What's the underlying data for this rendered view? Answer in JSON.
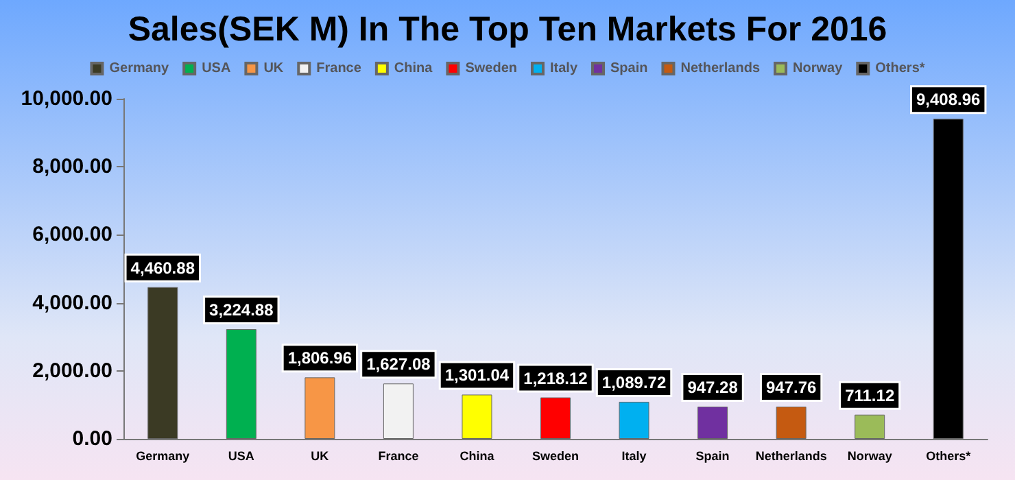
{
  "chart_data": {
    "type": "bar",
    "title": "Sales(SEK M) In The Top Ten Markets For 2016",
    "categories": [
      "Germany",
      "USA",
      "UK",
      "France",
      "China",
      "Sweden",
      "Italy",
      "Spain",
      "Netherlands",
      "Norway",
      "Others*"
    ],
    "series": [
      {
        "name": "Germany",
        "color": "#3b3a24",
        "values": [
          4460.88,
          null,
          null,
          null,
          null,
          null,
          null,
          null,
          null,
          null,
          null
        ],
        "value_labels": [
          "4,460.88",
          null,
          null,
          null,
          null,
          null,
          null,
          null,
          null,
          null,
          null
        ]
      },
      {
        "name": "USA",
        "color": "#00b050",
        "values": [
          null,
          3224.88,
          null,
          null,
          null,
          null,
          null,
          null,
          null,
          null,
          null
        ],
        "value_labels": [
          null,
          "3,224.88",
          null,
          null,
          null,
          null,
          null,
          null,
          null,
          null,
          null
        ]
      },
      {
        "name": "UK",
        "color": "#f79646",
        "values": [
          null,
          null,
          1806.96,
          null,
          null,
          null,
          null,
          null,
          null,
          null,
          null
        ],
        "value_labels": [
          null,
          null,
          "1,806.96",
          null,
          null,
          null,
          null,
          null,
          null,
          null,
          null
        ]
      },
      {
        "name": "France",
        "color": "#f2f2f2",
        "values": [
          null,
          null,
          null,
          1627.08,
          null,
          null,
          null,
          null,
          null,
          null,
          null
        ],
        "value_labels": [
          null,
          null,
          null,
          "1,627.08",
          null,
          null,
          null,
          null,
          null,
          null,
          null
        ]
      },
      {
        "name": "China",
        "color": "#ffff00",
        "values": [
          null,
          null,
          null,
          null,
          1301.04,
          null,
          null,
          null,
          null,
          null,
          null
        ],
        "value_labels": [
          null,
          null,
          null,
          null,
          "1,301.04",
          null,
          null,
          null,
          null,
          null,
          null
        ]
      },
      {
        "name": "Sweden",
        "color": "#ff0000",
        "values": [
          null,
          null,
          null,
          null,
          null,
          1218.12,
          null,
          null,
          null,
          null,
          null
        ],
        "value_labels": [
          null,
          null,
          null,
          null,
          null,
          "1,218.12",
          null,
          null,
          null,
          null,
          null
        ]
      },
      {
        "name": "Italy",
        "color": "#00b0f0",
        "values": [
          null,
          null,
          null,
          null,
          null,
          null,
          1089.72,
          null,
          null,
          null,
          null
        ],
        "value_labels": [
          null,
          null,
          null,
          null,
          null,
          null,
          "1,089.72",
          null,
          null,
          null,
          null
        ]
      },
      {
        "name": "Spain",
        "color": "#7030a0",
        "values": [
          null,
          null,
          null,
          null,
          null,
          null,
          null,
          947.28,
          null,
          null,
          null
        ],
        "value_labels": [
          null,
          null,
          null,
          null,
          null,
          null,
          null,
          "947.28",
          null,
          null,
          null
        ]
      },
      {
        "name": "Netherlands",
        "color": "#c55a11",
        "values": [
          null,
          null,
          null,
          null,
          null,
          null,
          null,
          null,
          947.76,
          null,
          null
        ],
        "value_labels": [
          null,
          null,
          null,
          null,
          null,
          null,
          null,
          null,
          "947.76",
          null,
          null
        ]
      },
      {
        "name": "Norway",
        "color": "#9bbb59",
        "values": [
          null,
          null,
          null,
          null,
          null,
          null,
          null,
          null,
          null,
          711.12,
          null
        ],
        "value_labels": [
          null,
          null,
          null,
          null,
          null,
          null,
          null,
          null,
          null,
          "711.12",
          null
        ]
      },
      {
        "name": "Others*",
        "color": "#000000",
        "values": [
          null,
          null,
          null,
          null,
          null,
          null,
          null,
          null,
          null,
          null,
          9408.96
        ],
        "value_labels": [
          null,
          null,
          null,
          null,
          null,
          null,
          null,
          null,
          null,
          null,
          "9,408.96"
        ]
      }
    ],
    "ylim": [
      0,
      10000
    ],
    "yticks": [
      {
        "value": 0,
        "label": "0.00"
      },
      {
        "value": 2000,
        "label": "2,000.00"
      },
      {
        "value": 4000,
        "label": "4,000.00"
      },
      {
        "value": 6000,
        "label": "6,000.00"
      },
      {
        "value": 8000,
        "label": "8,000.00"
      },
      {
        "value": 10000,
        "label": "10,000.00"
      }
    ],
    "legend": "top",
    "grid": false
  }
}
